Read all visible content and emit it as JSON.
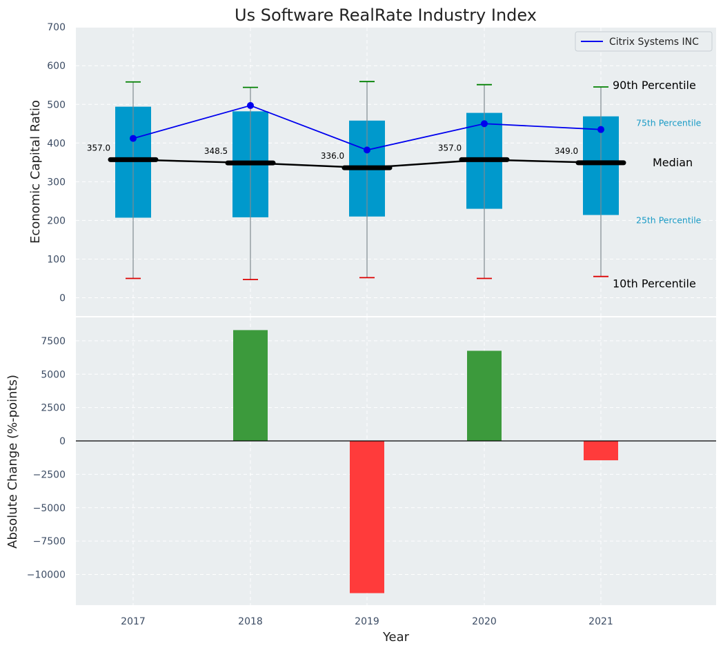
{
  "chart_data": [
    {
      "type": "box",
      "title": "Us Software RealRate Industry Index",
      "ylabel": "Economic Capital Ratio",
      "ylim": [
        -50,
        700
      ],
      "yticks": [
        "0",
        "100",
        "200",
        "300",
        "400",
        "500",
        "600",
        "700"
      ],
      "categories": [
        "2017",
        "2018",
        "2019",
        "2020",
        "2021"
      ],
      "p10": [
        50,
        47,
        52,
        50,
        55
      ],
      "p25": [
        207,
        208,
        210,
        230,
        214
      ],
      "median": [
        357.0,
        348.5,
        336.0,
        357.0,
        349.0
      ],
      "median_labels": [
        "357.0",
        "348.5",
        "336.0",
        "357.0",
        "349.0"
      ],
      "p75": [
        494,
        482,
        458,
        478,
        469
      ],
      "p90": [
        558,
        544,
        559,
        551,
        545
      ],
      "series": [
        {
          "name": "Citrix Systems INC",
          "values": [
            412,
            497,
            382,
            450,
            435
          ]
        }
      ],
      "annotations": {
        "p90": "90th Percentile",
        "p75": "75th Percentile",
        "median": "Median",
        "p25": "25th Percentile",
        "p10": "10th Percentile"
      },
      "legend_position": "top-right",
      "grid": true,
      "colors": {
        "box": "#0099cc",
        "median": "#000000",
        "company": "#0000ee",
        "whisker_top": "#008000",
        "whisker_bottom": "#dd0000",
        "annotation_small": "#1a9bc6",
        "background": "#eaeef0"
      }
    },
    {
      "type": "bar",
      "xlabel": "Year",
      "ylabel": "Absolute Change (%-points)",
      "ylim": [
        -12500,
        9500
      ],
      "yticks": [
        "−10000",
        "−7500",
        "−5000",
        "−2500",
        "0",
        "2500",
        "5000",
        "7500"
      ],
      "categories": [
        "2017",
        "2018",
        "2019",
        "2020",
        "2021"
      ],
      "values": [
        0,
        8300,
        -11400,
        6750,
        -1450
      ],
      "grid": true,
      "colors": {
        "positive": "#3c9a3c",
        "negative": "#ff3b3b"
      }
    }
  ]
}
